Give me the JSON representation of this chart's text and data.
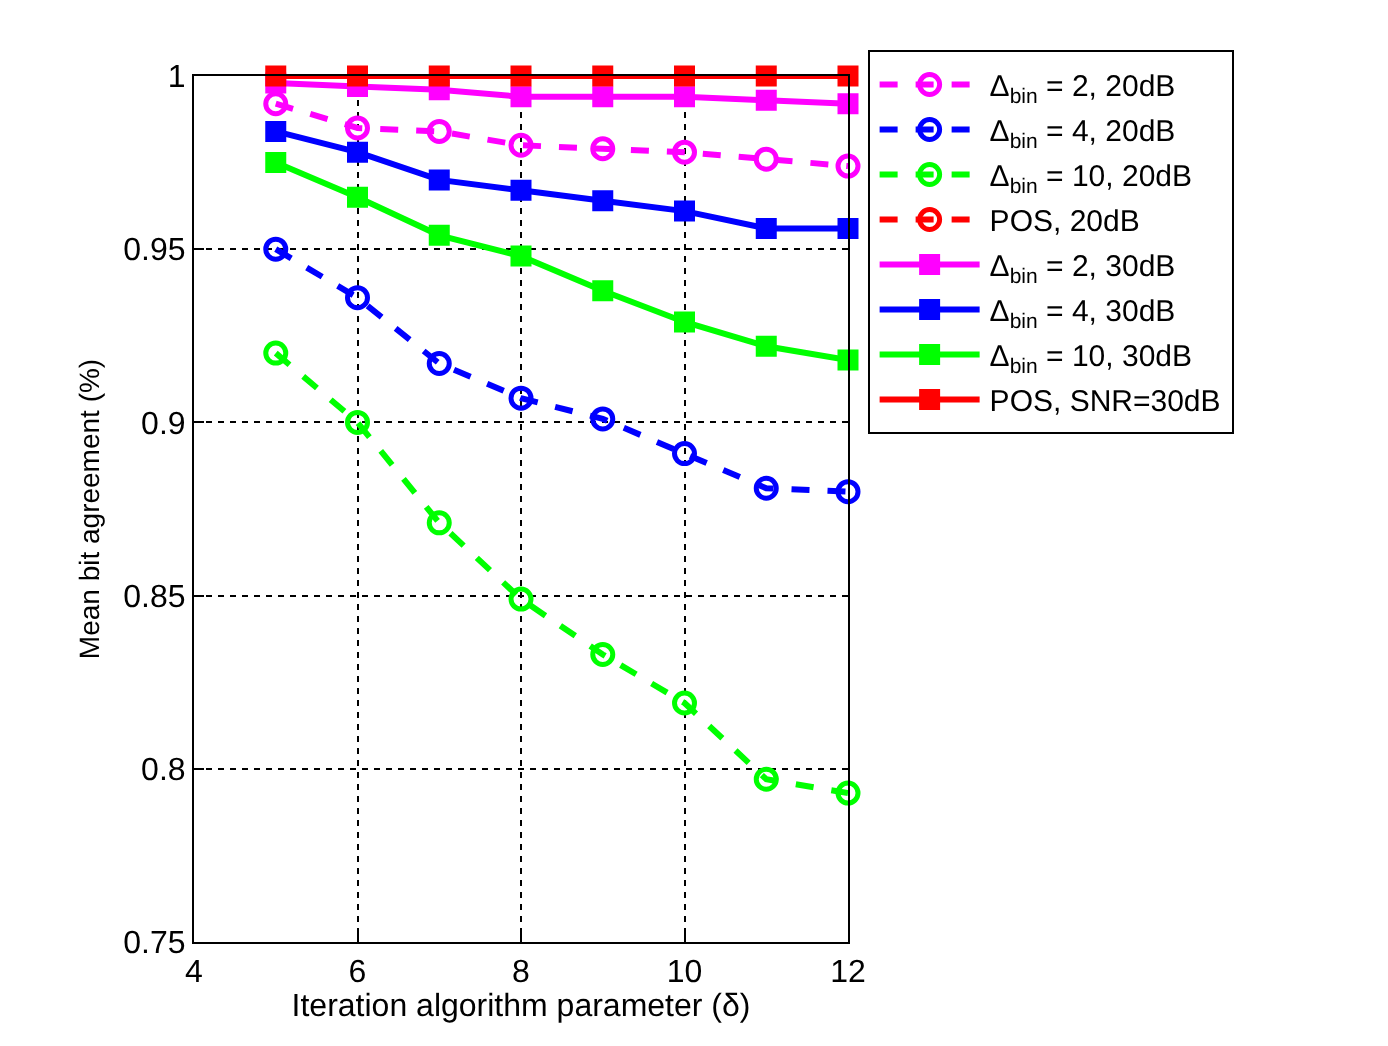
{
  "chart_data": {
    "type": "line",
    "xlabel": "Iteration algorithm parameter (δ)",
    "ylabel": "Mean bit agreement (%)",
    "x": [
      5,
      6,
      7,
      8,
      9,
      10,
      11,
      12
    ],
    "xlim": [
      4,
      12
    ],
    "xticks": [
      4,
      6,
      8,
      10,
      12
    ],
    "ylim": [
      0.75,
      1
    ],
    "yticks": [
      0.75,
      0.8,
      0.85,
      0.9,
      0.95,
      1
    ],
    "grid": true,
    "legend": "top right",
    "series": [
      {
        "name": "Δ$_{bin}$ = 2, 20dB",
        "color": "#ff00ff",
        "line_style": "dashed",
        "marker": "circle",
        "values": [
          0.992,
          0.985,
          0.984,
          0.98,
          0.979,
          0.978,
          0.976,
          0.974
        ]
      },
      {
        "name": "Δ$_{bin}$ = 4, 20dB",
        "color": "#0000ff",
        "line_style": "dashed",
        "marker": "circle",
        "values": [
          0.95,
          0.936,
          0.917,
          0.907,
          0.901,
          0.891,
          0.881,
          0.88
        ]
      },
      {
        "name": "Δ$_{bin}$ = 10, 20dB",
        "color": "#00ff00",
        "line_style": "dashed",
        "marker": "circle",
        "values": [
          0.92,
          0.9,
          0.871,
          0.849,
          0.833,
          0.819,
          0.797,
          0.793
        ]
      },
      {
        "name": "POS, 20dB",
        "color": "#ff0000",
        "line_style": "dashed",
        "marker": "circle",
        "values": [
          null,
          null,
          null,
          null,
          null,
          null,
          null,
          null
        ]
      },
      {
        "name": "Δ$_{bin}$ = 2, 30dB",
        "color": "#ff00ff",
        "line_style": "solid",
        "marker": "square",
        "values": [
          0.998,
          0.997,
          0.996,
          0.994,
          0.994,
          0.994,
          0.993,
          0.992
        ]
      },
      {
        "name": "Δ$_{bin}$ = 4, 30dB",
        "color": "#0000ff",
        "line_style": "solid",
        "marker": "square",
        "values": [
          0.984,
          0.978,
          0.97,
          0.967,
          0.964,
          0.961,
          0.956,
          0.956
        ]
      },
      {
        "name": "Δ$_{bin}$ = 10, 30dB",
        "color": "#00ff00",
        "line_style": "solid",
        "marker": "square",
        "values": [
          0.975,
          0.965,
          0.954,
          0.948,
          0.938,
          0.929,
          0.922,
          0.918
        ]
      },
      {
        "name": "POS, SNR=30dB",
        "color": "#ff0000",
        "line_style": "solid",
        "marker": "square",
        "values": [
          1,
          1,
          1,
          1,
          1,
          1,
          1,
          1
        ]
      }
    ]
  }
}
